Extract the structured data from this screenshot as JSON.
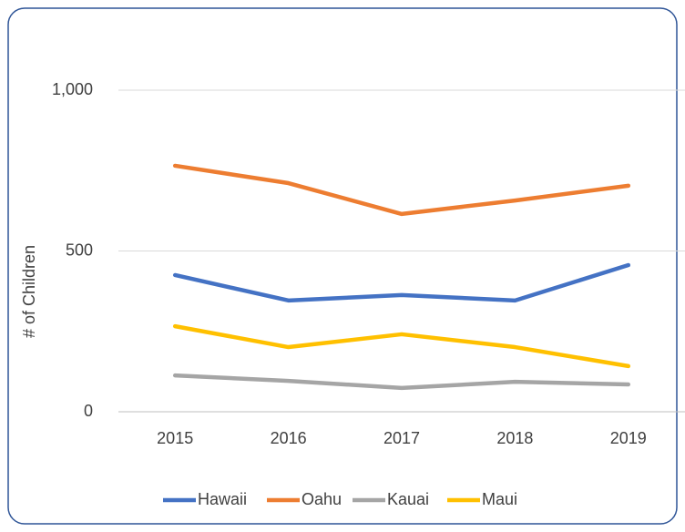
{
  "chart_data": {
    "type": "line",
    "y_label": "# of Children",
    "categories": [
      "2015",
      "2016",
      "2017",
      "2018",
      "2019"
    ],
    "series": [
      {
        "name": "Hawaii",
        "color": "#4472c4",
        "values": [
          425,
          346,
          363,
          346,
          456
        ]
      },
      {
        "name": "Oahu",
        "color": "#ed7d31",
        "values": [
          765,
          711,
          615,
          657,
          703
        ]
      },
      {
        "name": "Kauai",
        "color": "#a5a5a5",
        "values": [
          113,
          96,
          74,
          93,
          85
        ]
      },
      {
        "name": "Maui",
        "color": "#ffc000",
        "values": [
          266,
          201,
          241,
          201,
          142
        ]
      }
    ],
    "ylim": [
      0,
      1000
    ],
    "yticks": [
      0,
      500,
      {
        "value": 1000,
        "label": "1,000"
      }
    ],
    "grid": true,
    "legend": "bottom"
  }
}
